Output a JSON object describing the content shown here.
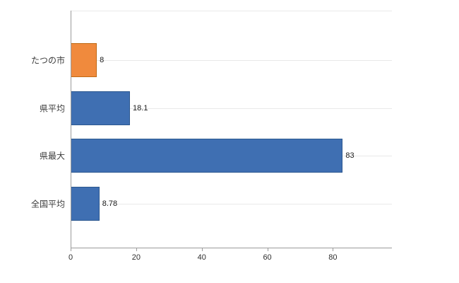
{
  "chart_data": {
    "type": "bar",
    "orientation": "horizontal",
    "title": "",
    "xlabel": "",
    "ylabel": "",
    "categories": [
      "たつの市",
      "県平均",
      "県最大",
      "全国平均"
    ],
    "values": [
      8,
      18.1,
      83,
      8.78
    ],
    "value_labels": [
      "8",
      "18.1",
      "83",
      "8.78"
    ],
    "bar_colors": [
      "#f08a3d",
      "#3f6fb2",
      "#3f6fb2",
      "#3f6fb2"
    ],
    "bar_border_colors": [
      "#c06a14",
      "#2c5890",
      "#2c5890",
      "#2c5890"
    ],
    "xticks": [
      0,
      20,
      40,
      60,
      80
    ],
    "xlim": [
      0,
      98
    ],
    "grid": "faint-horizontal",
    "legend": "none"
  },
  "colors": {
    "axis": "#9b9b9b",
    "grid": "#e9e9e9",
    "highlight_bar": "#f08a3d",
    "default_bar": "#3f6fb2",
    "background": "#ffffff"
  }
}
